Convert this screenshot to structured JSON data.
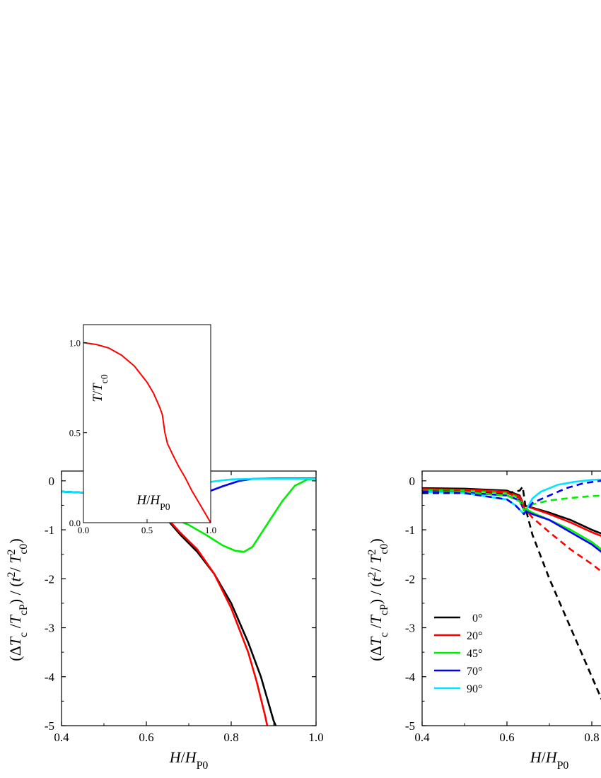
{
  "chart_data": [
    {
      "type": "line",
      "panel": "left",
      "xlabel": {
        "italic": "H",
        "slash": "/",
        "italic2": "H",
        "sub": "P0"
      },
      "ylabel": "(ΔTc /TcP) / (t²/ T²c0)",
      "xlim": [
        0.4,
        1.0
      ],
      "ylim": [
        -5,
        0.2
      ],
      "xticks": [
        0.4,
        0.6,
        0.8,
        1.0
      ],
      "xtick_labels": [
        "0.4",
        "0.6",
        "0.8",
        "1.0"
      ],
      "yticks": [
        0,
        -1,
        -2,
        -3,
        -4,
        -5
      ],
      "ytick_labels": [
        "0",
        "-1",
        "-2",
        "-3",
        "-4",
        "-5"
      ],
      "grid": false,
      "series": [
        {
          "color": "#000000",
          "style": "solid",
          "x": [
            0.4,
            0.5,
            0.55,
            0.6,
            0.62,
            0.64,
            0.65,
            0.68,
            0.72,
            0.76,
            0.8,
            0.84,
            0.87,
            0.9,
            0.905
          ],
          "y": [
            -0.22,
            -0.26,
            -0.3,
            -0.4,
            -0.5,
            -0.68,
            -0.8,
            -1.1,
            -1.45,
            -1.9,
            -2.5,
            -3.3,
            -4.0,
            -4.9,
            -5.0
          ]
        },
        {
          "color": "#ff0000",
          "style": "solid",
          "x": [
            0.4,
            0.5,
            0.55,
            0.6,
            0.62,
            0.64,
            0.65,
            0.68,
            0.72,
            0.76,
            0.8,
            0.84,
            0.86,
            0.88,
            0.885
          ],
          "y": [
            -0.22,
            -0.26,
            -0.3,
            -0.4,
            -0.5,
            -0.68,
            -0.78,
            -1.06,
            -1.4,
            -1.9,
            -2.6,
            -3.5,
            -4.1,
            -4.8,
            -5.0
          ]
        },
        {
          "color": "#00ee00",
          "style": "solid",
          "x": [
            0.4,
            0.5,
            0.55,
            0.6,
            0.62,
            0.64,
            0.66,
            0.7,
            0.74,
            0.78,
            0.81,
            0.83,
            0.85,
            0.88,
            0.92,
            0.95,
            0.98,
            1.0
          ],
          "y": [
            -0.22,
            -0.26,
            -0.3,
            -0.4,
            -0.5,
            -0.68,
            -0.75,
            -0.9,
            -1.1,
            -1.32,
            -1.43,
            -1.45,
            -1.35,
            -0.95,
            -0.42,
            -0.1,
            0.03,
            0.04
          ]
        },
        {
          "color": "#0000ff",
          "style": "solid",
          "x": [
            0.4,
            0.5,
            0.55,
            0.6,
            0.62,
            0.64,
            0.66,
            0.7,
            0.74,
            0.78,
            0.82,
            0.85,
            0.9,
            0.95,
            1.0
          ],
          "y": [
            -0.22,
            -0.26,
            -0.3,
            -0.4,
            -0.5,
            -0.68,
            -0.5,
            -0.37,
            -0.24,
            -0.11,
            0.0,
            0.04,
            0.05,
            0.05,
            0.05
          ]
        },
        {
          "color": "#00e5ff",
          "style": "solid",
          "x": [
            0.4,
            0.5,
            0.55,
            0.6,
            0.62,
            0.64,
            0.66,
            0.68,
            0.72,
            0.76,
            0.8,
            0.85,
            0.9,
            1.0
          ],
          "y": [
            -0.22,
            -0.26,
            -0.3,
            -0.4,
            -0.5,
            -0.68,
            -0.36,
            -0.22,
            -0.08,
            -0.01,
            0.03,
            0.04,
            0.04,
            0.04
          ]
        }
      ],
      "inset": {
        "xlabel": {
          "italic": "H",
          "slash": "/",
          "italic2": "H",
          "sub": "P0"
        },
        "ylabel": {
          "italic": "T",
          "slash": "/",
          "italic2": "T",
          "sub": "c0"
        },
        "xlim": [
          0.0,
          1.0
        ],
        "ylim": [
          0.0,
          1.1
        ],
        "xticks": [
          0.0,
          0.5,
          1.0
        ],
        "xtick_labels": [
          "0.0",
          "0.5",
          "1.0"
        ],
        "yticks": [
          0.0,
          0.5,
          1.0
        ],
        "ytick_labels": [
          "0.0",
          "0.5",
          "1.0"
        ],
        "series": [
          {
            "color": "#ff0000",
            "x": [
              0.0,
              0.1,
              0.2,
              0.3,
              0.4,
              0.5,
              0.55,
              0.6,
              0.62,
              0.64,
              0.66,
              0.7,
              0.75,
              0.8,
              0.85,
              0.9,
              0.95,
              1.0
            ],
            "y": [
              1.0,
              0.99,
              0.97,
              0.93,
              0.87,
              0.78,
              0.72,
              0.64,
              0.6,
              0.5,
              0.44,
              0.38,
              0.31,
              0.25,
              0.18,
              0.12,
              0.06,
              0.0
            ]
          }
        ]
      }
    },
    {
      "type": "line",
      "panel": "right",
      "xlabel": {
        "italic": "H",
        "slash": "/",
        "italic2": "H",
        "sub": "P0"
      },
      "ylabel": "(ΔTc /TcP) / (t²/ T²c0)",
      "xlim": [
        0.4,
        1.0
      ],
      "ylim": [
        -5,
        0.2
      ],
      "xticks": [
        0.4,
        0.6,
        0.8
      ],
      "xtick_labels": [
        "0.4",
        "0.6",
        "0.8"
      ],
      "yticks": [
        0,
        -1,
        -2,
        -3,
        -4,
        -5
      ],
      "ytick_labels": [
        "0",
        "-1",
        "-2",
        "-3",
        "-4",
        "-5"
      ],
      "grid": false,
      "legend": {
        "placement": "lower-left",
        "labels": [
          "0°",
          "20°",
          "45°",
          "70°",
          "90°"
        ]
      },
      "series": [
        {
          "name": "0°",
          "color": "#000000",
          "style": "solid",
          "x": [
            0.4,
            0.5,
            0.6,
            0.63,
            0.64,
            0.66,
            0.7,
            0.75,
            0.8,
            0.83
          ],
          "y": [
            -0.15,
            -0.16,
            -0.2,
            -0.3,
            -0.5,
            -0.55,
            -0.65,
            -0.8,
            -1.0,
            -1.1
          ]
        },
        {
          "name": "20°",
          "color": "#ff0000",
          "style": "solid",
          "x": [
            0.4,
            0.5,
            0.6,
            0.63,
            0.64,
            0.66,
            0.7,
            0.75,
            0.8,
            0.83
          ],
          "y": [
            -0.17,
            -0.18,
            -0.22,
            -0.32,
            -0.5,
            -0.56,
            -0.68,
            -0.85,
            -1.05,
            -1.15
          ]
        },
        {
          "name": "45°",
          "color": "#00ee00",
          "style": "solid",
          "x": [
            0.4,
            0.5,
            0.6,
            0.63,
            0.64,
            0.66,
            0.7,
            0.75,
            0.8,
            0.83
          ],
          "y": [
            -0.19,
            -0.2,
            -0.25,
            -0.35,
            -0.55,
            -0.65,
            -0.8,
            -1.0,
            -1.25,
            -1.45
          ]
        },
        {
          "name": "70°",
          "color": "#0000ff",
          "style": "solid",
          "x": [
            0.4,
            0.5,
            0.6,
            0.63,
            0.64,
            0.66,
            0.7,
            0.75,
            0.8,
            0.83
          ],
          "y": [
            -0.22,
            -0.24,
            -0.3,
            -0.4,
            -0.6,
            -0.68,
            -0.8,
            -1.05,
            -1.3,
            -1.5
          ]
        },
        {
          "name": "90°",
          "color": "#00e5ff",
          "style": "solid",
          "x": [
            0.4,
            0.5,
            0.6,
            0.62,
            0.64,
            0.66,
            0.68,
            0.72,
            0.76,
            0.8,
            0.83
          ],
          "y": [
            -0.22,
            -0.25,
            -0.38,
            -0.5,
            -0.68,
            -0.36,
            -0.22,
            -0.08,
            -0.02,
            0.02,
            0.03
          ]
        },
        {
          "color": "#000000",
          "style": "dashed",
          "x": [
            0.4,
            0.5,
            0.6,
            0.63,
            0.637,
            0.645,
            0.66,
            0.7,
            0.74,
            0.78,
            0.8,
            0.83
          ],
          "y": [
            -0.25,
            -0.25,
            -0.25,
            -0.2,
            -0.12,
            -0.6,
            -1.1,
            -2.0,
            -2.8,
            -3.6,
            -4.0,
            -4.6
          ]
        },
        {
          "color": "#ff0000",
          "style": "dashed",
          "x": [
            0.4,
            0.5,
            0.6,
            0.63,
            0.64,
            0.66,
            0.7,
            0.75,
            0.8,
            0.83
          ],
          "y": [
            -0.2,
            -0.2,
            -0.24,
            -0.35,
            -0.55,
            -0.75,
            -1.05,
            -1.4,
            -1.7,
            -1.9
          ]
        },
        {
          "color": "#00ee00",
          "style": "dashed",
          "x": [
            0.4,
            0.5,
            0.6,
            0.63,
            0.64,
            0.66,
            0.7,
            0.75,
            0.8,
            0.83
          ],
          "y": [
            -0.22,
            -0.23,
            -0.3,
            -0.42,
            -0.6,
            -0.48,
            -0.4,
            -0.35,
            -0.31,
            -0.3
          ]
        },
        {
          "color": "#0000ff",
          "style": "dashed",
          "x": [
            0.4,
            0.5,
            0.6,
            0.62,
            0.64,
            0.66,
            0.7,
            0.74,
            0.78,
            0.82,
            0.83
          ],
          "y": [
            -0.22,
            -0.25,
            -0.38,
            -0.5,
            -0.68,
            -0.45,
            -0.3,
            -0.15,
            -0.05,
            0.0,
            0.0
          ]
        }
      ]
    }
  ]
}
